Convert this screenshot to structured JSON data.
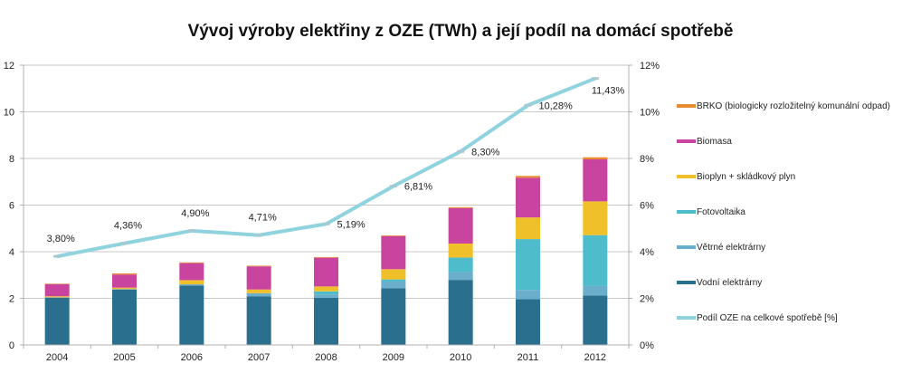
{
  "chart_data": {
    "type": "bar",
    "stacked": true,
    "title": "Vývoj výroby elektřiny z OZE (TWh) a její podíl na domácí spotřebě",
    "xlabel": "",
    "ylabel": "",
    "categories": [
      "2004",
      "2005",
      "2006",
      "2007",
      "2008",
      "2009",
      "2010",
      "2011",
      "2012"
    ],
    "ylim": [
      0,
      12
    ],
    "yticks": [
      "0",
      "2",
      "4",
      "6",
      "8",
      "10",
      "12"
    ],
    "y2lim": [
      0,
      12
    ],
    "y2ticks": [
      "0%",
      "2%",
      "4%",
      "6%",
      "8%",
      "10%",
      "12%"
    ],
    "grid": true,
    "legend_position": "right",
    "series": [
      {
        "name": "Vodní elektrárny",
        "color": "#2b6f8f",
        "values": [
          2.03,
          2.38,
          2.55,
          2.09,
          2.02,
          2.43,
          2.79,
          1.96,
          2.12
        ]
      },
      {
        "name": "Větrné elektrárny",
        "color": "#6aaecb",
        "values": [
          0.01,
          0.02,
          0.05,
          0.13,
          0.15,
          0.29,
          0.34,
          0.4,
          0.42
        ]
      },
      {
        "name": "Fotovoltaika",
        "color": "#4fbccc",
        "values": [
          0.0,
          0.0,
          0.0,
          0.0,
          0.13,
          0.09,
          0.62,
          2.18,
          2.17
        ]
      },
      {
        "name": "Bioplyn + skládkový plyn",
        "color": "#f0c02a",
        "values": [
          0.05,
          0.06,
          0.18,
          0.16,
          0.21,
          0.44,
          0.6,
          0.93,
          1.45
        ]
      },
      {
        "name": "Biomasa",
        "color": "#c9449f",
        "values": [
          0.52,
          0.56,
          0.73,
          0.99,
          1.23,
          1.42,
          1.52,
          1.7,
          1.8
        ]
      },
      {
        "name": "BRKO (biologicky rozložitelný komunální odpad)",
        "color": "#e88a2e",
        "values": [
          0.02,
          0.05,
          0.03,
          0.03,
          0.03,
          0.03,
          0.04,
          0.08,
          0.09
        ]
      }
    ],
    "line_series": {
      "name": "Podíl OZE na celkové spotřebě [%]",
      "color": "#8fd3df",
      "axis": "right",
      "values": [
        3.8,
        4.36,
        4.9,
        4.71,
        5.19,
        6.81,
        8.3,
        10.28,
        11.43
      ],
      "labels": [
        "3,80%",
        "4,36%",
        "4,90%",
        "4,71%",
        "5,19%",
        "6,81%",
        "8,30%",
        "10,28%",
        "11,43%"
      ]
    },
    "legend_order": [
      "BRKO (biologicky rozložitelný komunální odpad)",
      "Biomasa",
      "Bioplyn + skládkový plyn",
      "Fotovoltaika",
      "Větrné elektrárny",
      "Vodní elektrárny",
      "Podíl OZE na celkové spotřebě [%]"
    ]
  }
}
